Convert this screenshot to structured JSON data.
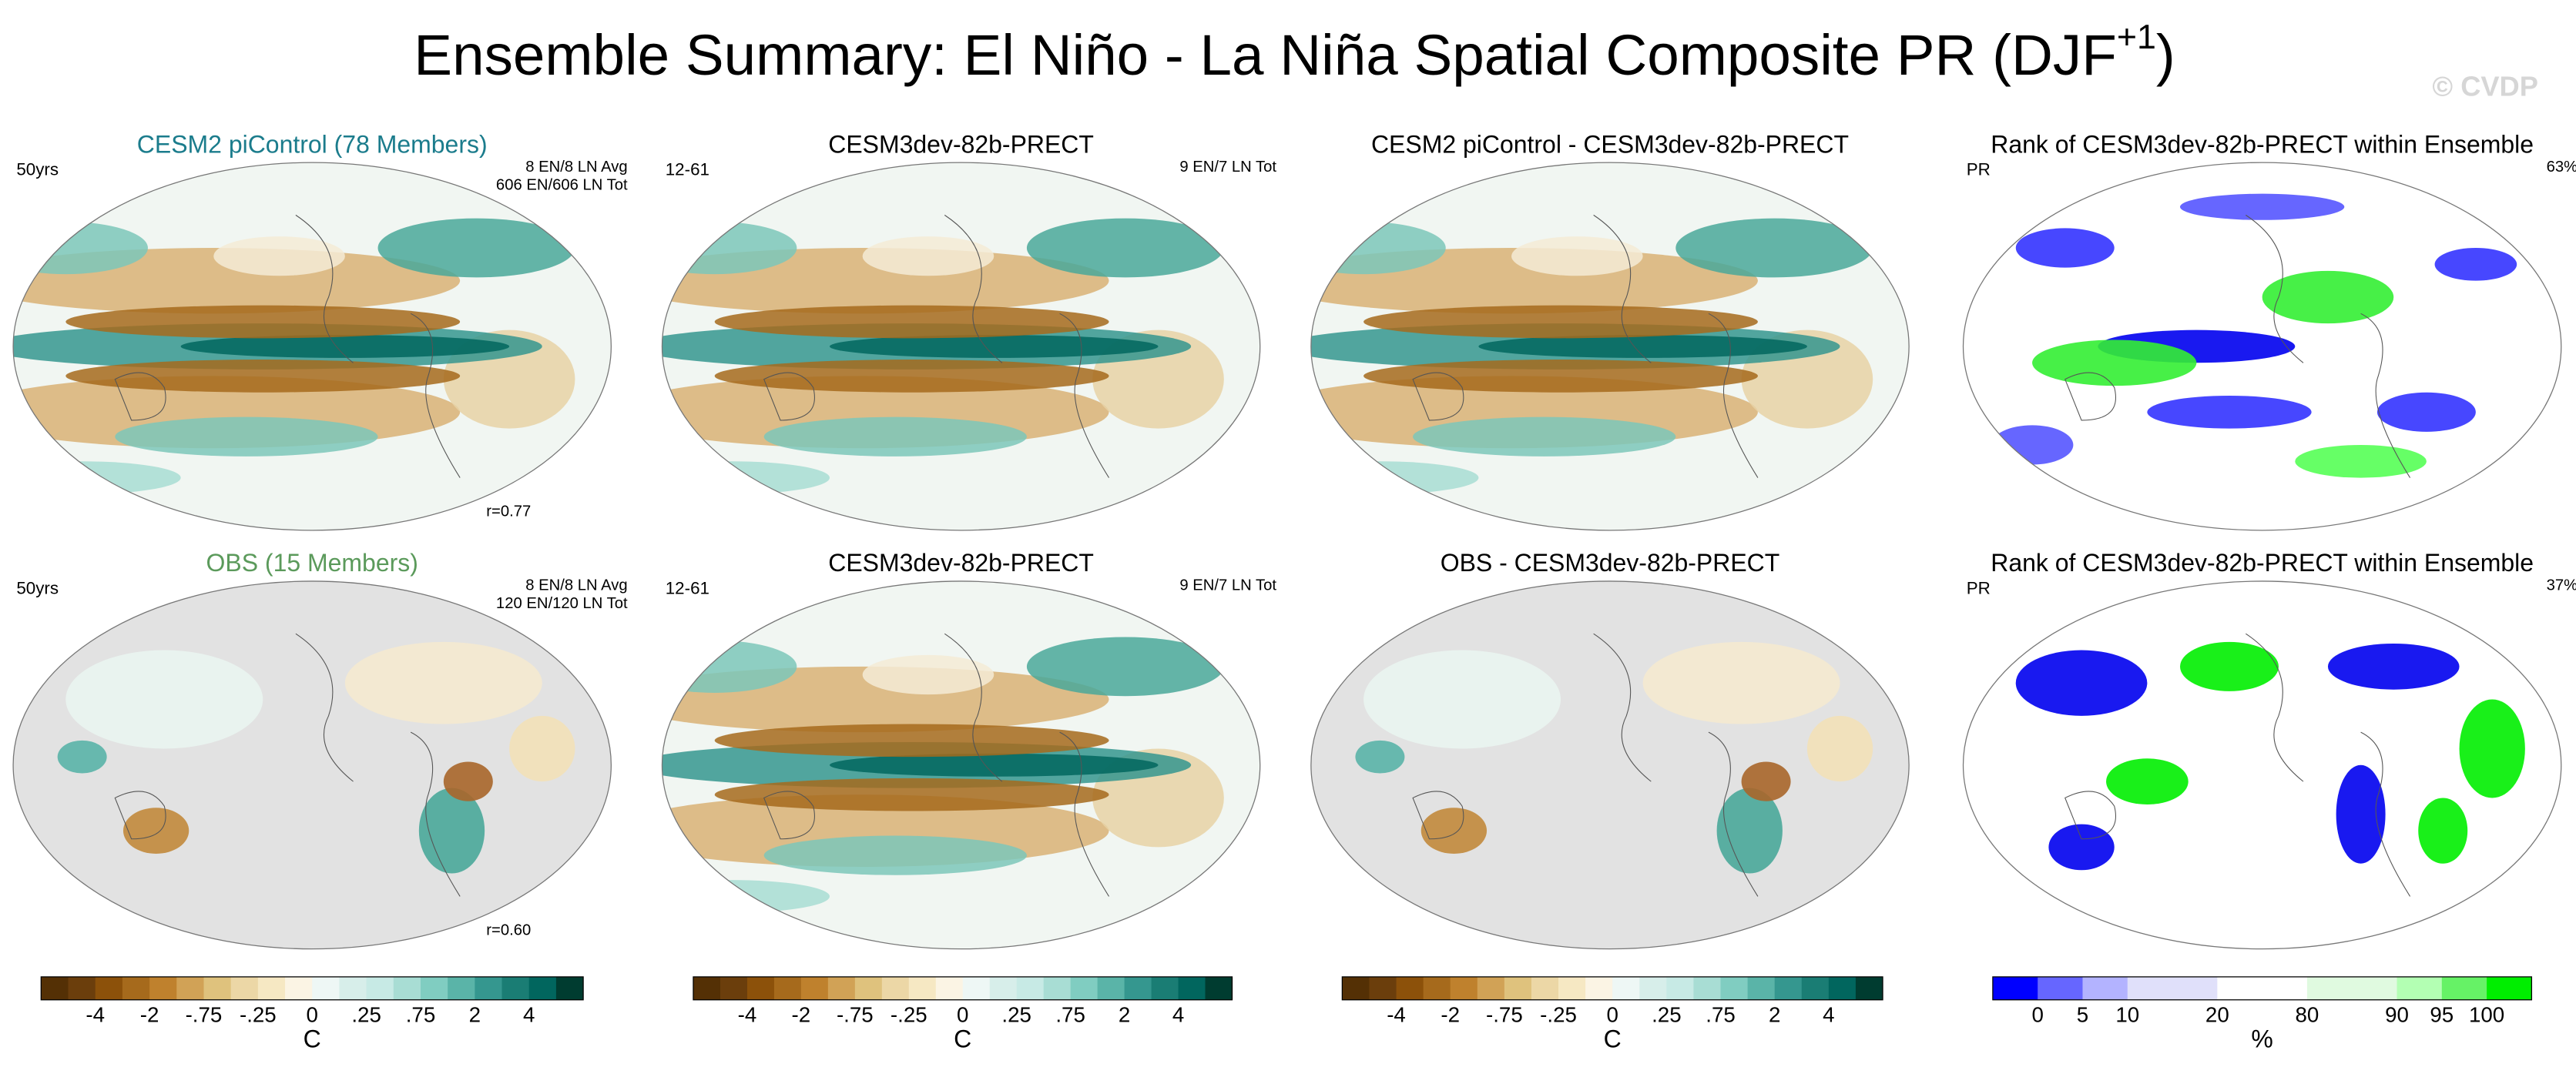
{
  "header": {
    "title": "Ensemble Summary: El Niño - La Niña Spatial Composite PR (DJF",
    "title_superscript": "+1",
    "title_close": ")",
    "watermark": "© CVDP"
  },
  "panels": [
    {
      "title": "CESM2 piControl (78 Members)",
      "title_color": "#1b7c8c",
      "left": "50yrs",
      "right": [
        "8 EN/8 LN Avg",
        "606 EN/606 LN Tot"
      ],
      "bottom": "r=0.77"
    },
    {
      "title": "CESM3dev-82b-PRECT",
      "left": "12-61",
      "right": [
        "9 EN/7 LN Tot"
      ]
    },
    {
      "title": "CESM2 piControl - CESM3dev-82b-PRECT"
    },
    {
      "title": "Rank of CESM3dev-82b-PRECT within Ensemble",
      "left": "PR",
      "right": [
        "63%"
      ]
    },
    {
      "title": "OBS (15 Members)",
      "title_color": "#5b9a5b",
      "left": "50yrs",
      "right": [
        "8 EN/8 LN Avg",
        "120 EN/120 LN Tot"
      ],
      "bottom": "r=0.60"
    },
    {
      "title": "CESM3dev-82b-PRECT",
      "left": "12-61",
      "right": [
        "9 EN/7 LN Tot"
      ]
    },
    {
      "title": "OBS - CESM3dev-82b-PRECT"
    },
    {
      "title": "Rank of CESM3dev-82b-PRECT within Ensemble",
      "left": "PR",
      "right": [
        "37%"
      ]
    }
  ],
  "colorbars": [
    {
      "colors": [
        "#543005",
        "#6b3e0c",
        "#8c510a",
        "#a66a1c",
        "#bf812d",
        "#d1a256",
        "#dfc27d",
        "#ecd7a6",
        "#f6e8c3",
        "#fbf4e4",
        "#eef7f5",
        "#d7eeea",
        "#c7eae5",
        "#a8ddd4",
        "#80cdc1",
        "#5ab4a8",
        "#35978f",
        "#1a7d74",
        "#01665e",
        "#003c30"
      ],
      "labels": [
        "-4",
        "-2",
        "-.75",
        "-.25",
        "0",
        ".25",
        ".75",
        "2",
        "4"
      ],
      "unit": "C"
    },
    {
      "colors": [
        "#543005",
        "#6b3e0c",
        "#8c510a",
        "#a66a1c",
        "#bf812d",
        "#d1a256",
        "#dfc27d",
        "#ecd7a6",
        "#f6e8c3",
        "#fbf4e4",
        "#eef7f5",
        "#d7eeea",
        "#c7eae5",
        "#a8ddd4",
        "#80cdc1",
        "#5ab4a8",
        "#35978f",
        "#1a7d74",
        "#01665e",
        "#003c30"
      ],
      "labels": [
        "-4",
        "-2",
        "-.75",
        "-.25",
        "0",
        ".25",
        ".75",
        "2",
        "4"
      ],
      "unit": "C"
    },
    {
      "colors": [
        "#543005",
        "#6b3e0c",
        "#8c510a",
        "#a66a1c",
        "#bf812d",
        "#d1a256",
        "#dfc27d",
        "#ecd7a6",
        "#f6e8c3",
        "#fbf4e4",
        "#eef7f5",
        "#d7eeea",
        "#c7eae5",
        "#a8ddd4",
        "#80cdc1",
        "#5ab4a8",
        "#35978f",
        "#1a7d74",
        "#01665e",
        "#003c30"
      ],
      "labels": [
        "-4",
        "-2",
        "-.75",
        "-.25",
        "0",
        ".25",
        ".75",
        "2",
        "4"
      ],
      "unit": "C"
    },
    {
      "colors": [
        "#0000ff",
        "#6666ff",
        "#b3b3ff",
        "#e0e0fa",
        "#e0e0fa",
        "#ffffff",
        "#ffffff",
        "#e0fae0",
        "#e0fae0",
        "#b3ffb3",
        "#66f266",
        "#00ee00"
      ],
      "labels": [
        "0",
        "5",
        "10",
        "20",
        "80",
        "90",
        "95",
        "100"
      ],
      "unit": "%"
    }
  ]
}
